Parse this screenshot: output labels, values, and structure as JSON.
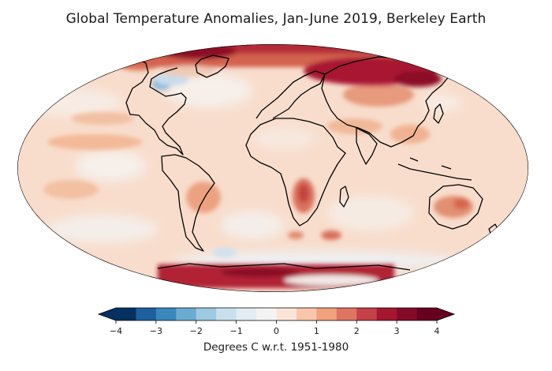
{
  "title": "Global Temperature Anomalies, Jan-June 2019, Berkeley Earth",
  "projection": "Mollweide",
  "colorbar": {
    "label": "Degrees C w.r.t. 1951-1980",
    "min": -4,
    "max": 4,
    "step": 0.5,
    "extend": "both",
    "ticks": [
      -4,
      -3,
      -2,
      -1,
      0,
      1,
      2,
      3,
      4
    ],
    "tick_labels": [
      "−4",
      "−3",
      "−2",
      "−1",
      "0",
      "1",
      "2",
      "3",
      "4"
    ],
    "colors": [
      "#053061",
      "#1e5f9d",
      "#3a87be",
      "#6aabd1",
      "#9dc9e1",
      "#c8e0ed",
      "#e1edf3",
      "#f3f3f3",
      "#fbe4d6",
      "#f9c6ab",
      "#f0a27f",
      "#dd7561",
      "#c54047",
      "#a51731",
      "#840b27",
      "#67001f"
    ]
  },
  "colors": {
    "ocean_base": "#f8ddcc",
    "coastline": "#000000",
    "outline": "#000000"
  }
}
